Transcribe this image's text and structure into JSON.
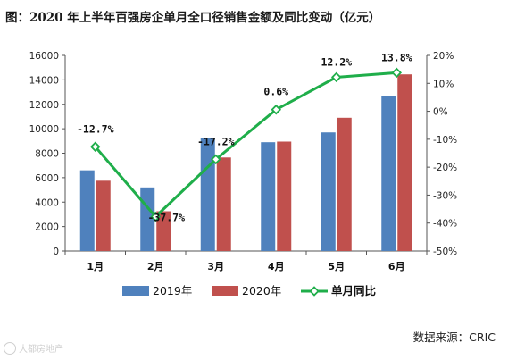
{
  "chart_data": {
    "type": "bar",
    "title": "图：2020 年上半年百强房企单月全口径销售金额及同比变动（亿元）",
    "categories": [
      "1月",
      "2月",
      "3月",
      "4月",
      "5月",
      "6月"
    ],
    "series": [
      {
        "name": "2019年",
        "type": "bar",
        "axis": "left",
        "color": "#4f81bd",
        "values": [
          6600,
          5200,
          9250,
          8900,
          9700,
          12650
        ]
      },
      {
        "name": "2020年",
        "type": "bar",
        "axis": "left",
        "color": "#c0504d",
        "values": [
          5750,
          3250,
          7650,
          8950,
          10900,
          14450
        ]
      },
      {
        "name": "单月同比",
        "type": "line",
        "axis": "right",
        "color": "#1fae4a",
        "values": [
          -12.7,
          -37.7,
          -17.2,
          0.6,
          12.2,
          13.8
        ],
        "labels": [
          "-12.7%",
          "-37.7%",
          "-17.2%",
          "0.6%",
          "12.2%",
          "13.8%"
        ]
      }
    ],
    "y_left": {
      "min": 0,
      "max": 16000,
      "step": 2000,
      "ticks": [
        "0",
        "2000",
        "4000",
        "6000",
        "8000",
        "10000",
        "12000",
        "14000",
        "16000"
      ]
    },
    "y_right": {
      "min": -50,
      "max": 20,
      "step": 10,
      "ticks": [
        "-50%",
        "-40%",
        "-30%",
        "-20%",
        "-10%",
        "0%",
        "10%",
        "20%"
      ]
    },
    "grid": false,
    "legend_position": "bottom"
  },
  "source_text": "数据来源：CRIC",
  "watermark_text": "大都房地产"
}
